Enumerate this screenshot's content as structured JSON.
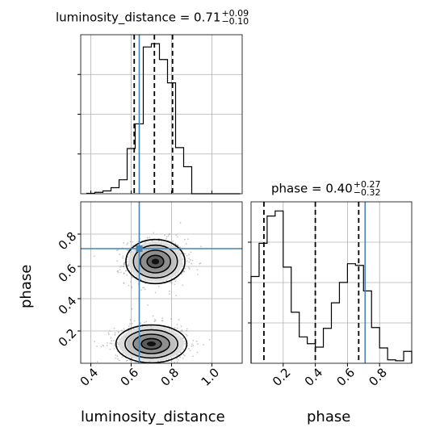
{
  "chart_data": {
    "type": "corner",
    "parameters": [
      "luminosity_distance",
      "phase"
    ],
    "truth": {
      "luminosity_distance": 0.64,
      "phase": 0.71
    },
    "panels": {
      "luminosity_distance_hist": {
        "title_main": "luminosity_distance = 0.71",
        "title_sup": "+0.09",
        "title_sub": "−0.10",
        "xlim": [
          0.35,
          1.15
        ],
        "quantiles": [
          0.615,
          0.715,
          0.805
        ],
        "bins": [
          0.38,
          0.42,
          0.46,
          0.5,
          0.54,
          0.58,
          0.62,
          0.66,
          0.7,
          0.74,
          0.78,
          0.82,
          0.86,
          0.9,
          0.94,
          0.98,
          1.02,
          1.06,
          1.1,
          1.14
        ],
        "counts": [
          1,
          3,
          6,
          13,
          30,
          97,
          150,
          315,
          322,
          288,
          238,
          99,
          58,
          0,
          0,
          0,
          0,
          0,
          0
        ]
      },
      "phase_hist": {
        "title_main": "phase = 0.40",
        "title_sup": "+0.27",
        "title_sub": "−0.32",
        "xlim": [
          0.0,
          1.0
        ],
        "xticks": [
          "0.2",
          "0.4",
          "0.6",
          "0.8"
        ],
        "xlabel": "phase",
        "quantiles": [
          0.08,
          0.4,
          0.67
        ],
        "bins": [
          0.0,
          0.05,
          0.1,
          0.15,
          0.2,
          0.25,
          0.3,
          0.35,
          0.4,
          0.45,
          0.5,
          0.55,
          0.6,
          0.65,
          0.7,
          0.75,
          0.8,
          0.85,
          0.9,
          0.95,
          1.0
        ],
        "counts": [
          102,
          141,
          173,
          179,
          113,
          60,
          31,
          23,
          19,
          41,
          71,
          95,
          117,
          115,
          85,
          42,
          18,
          4,
          3,
          14
        ]
      },
      "scatter_2d": {
        "xlabel": "luminosity_distance",
        "ylabel": "phase",
        "xlim": [
          0.35,
          1.15
        ],
        "ylim": [
          0.0,
          1.0
        ],
        "xticks": [
          "0.4",
          "0.6",
          "0.8",
          "1.0"
        ],
        "yticks": [
          "0.2",
          "0.4",
          "0.6",
          "0.8"
        ],
        "modes": [
          {
            "x": 0.72,
            "y": 0.63,
            "sx": 0.075,
            "sy": 0.07
          },
          {
            "x": 0.7,
            "y": 0.12,
            "sx": 0.09,
            "sy": 0.06
          }
        ]
      }
    },
    "colors": {
      "truth": "#4682b4",
      "line": "#000000",
      "grid": "#b0b0b0",
      "points": "#999999"
    }
  }
}
